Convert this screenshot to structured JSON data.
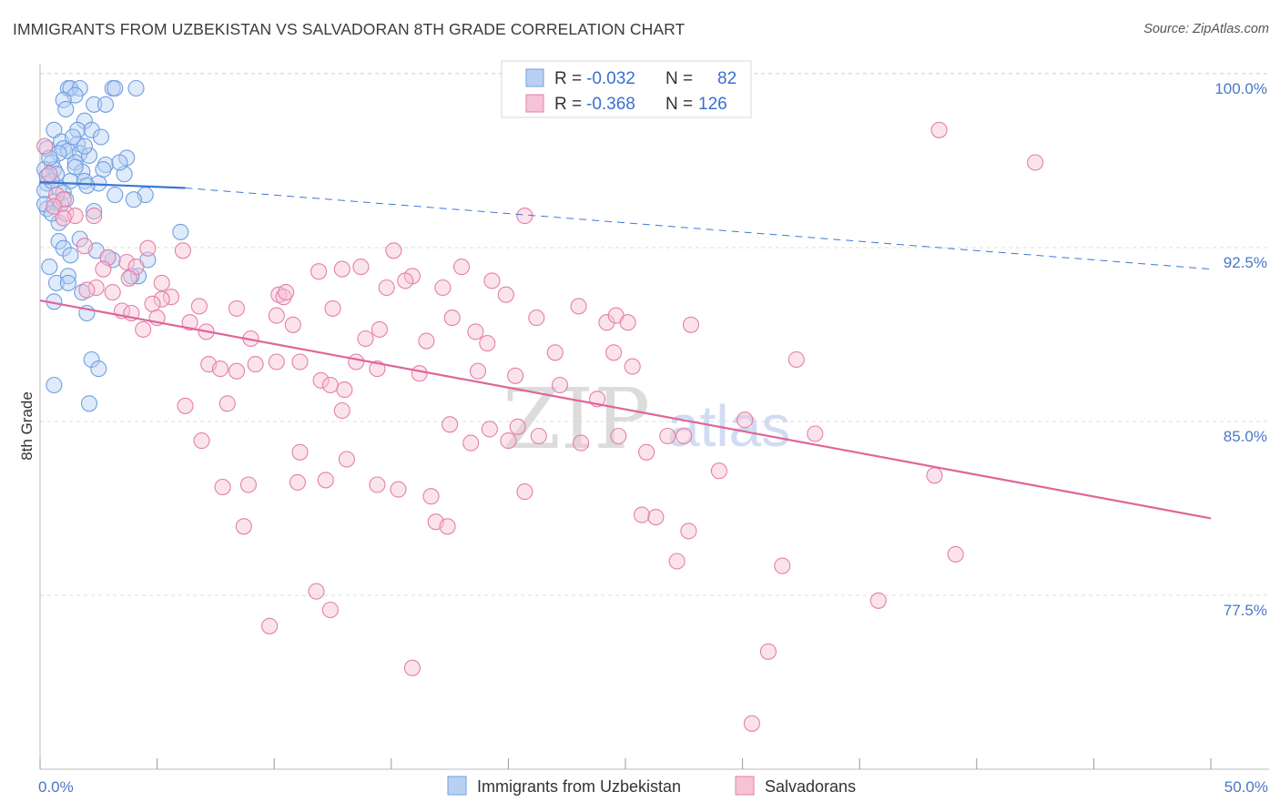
{
  "title": "IMMIGRANTS FROM UZBEKISTAN VS SALVADORAN 8TH GRADE CORRELATION CHART",
  "source": "Source: ZipAtlas.com",
  "watermark": {
    "left": "ZIP",
    "right": "atlas"
  },
  "chart_data": {
    "type": "scatter",
    "xlabel": "",
    "ylabel": "8th Grade",
    "xlim": [
      0,
      50
    ],
    "ylim": [
      70,
      101.5
    ],
    "x_ticks": [
      "0.0%",
      "50.0%"
    ],
    "y_ticks": [
      {
        "value": 100.0,
        "label": "100.0%"
      },
      {
        "value": 92.5,
        "label": "92.5%"
      },
      {
        "value": 85.0,
        "label": "85.0%"
      },
      {
        "value": 77.5,
        "label": "77.5%"
      }
    ],
    "legend": {
      "rows": [
        {
          "r_label": "R =",
          "r_value": "-0.032",
          "n_label": "N =",
          "n_value": "82"
        },
        {
          "r_label": "R =",
          "r_value": "-0.368",
          "n_label": "N =",
          "n_value": "126"
        }
      ]
    },
    "series": [
      {
        "name": "Immigrants from Uzbekistan",
        "color": "#6f9fe0",
        "fill": "#b9d0f3",
        "trend": {
          "x0": 0,
          "y0": 95.95,
          "x1": 6.2,
          "y1": 95.7,
          "dash_to_x": 50,
          "dash_to_y": 92.2
        },
        "points": [
          [
            1.2,
            100.0
          ],
          [
            1.3,
            100.0
          ],
          [
            1.7,
            100.0
          ],
          [
            3.1,
            100.0
          ],
          [
            3.2,
            100.0
          ],
          [
            4.1,
            100.0
          ],
          [
            1.5,
            99.7
          ],
          [
            1.0,
            99.5
          ],
          [
            2.3,
            99.3
          ],
          [
            2.8,
            99.3
          ],
          [
            1.1,
            99.1
          ],
          [
            1.9,
            98.6
          ],
          [
            0.6,
            98.2
          ],
          [
            1.6,
            98.2
          ],
          [
            2.2,
            98.2
          ],
          [
            2.6,
            97.9
          ],
          [
            0.9,
            97.7
          ],
          [
            1.6,
            97.6
          ],
          [
            0.3,
            97.4
          ],
          [
            1.0,
            97.4
          ],
          [
            1.2,
            97.3
          ],
          [
            0.8,
            97.2
          ],
          [
            1.7,
            97.2
          ],
          [
            2.1,
            97.1
          ],
          [
            3.7,
            97.0
          ],
          [
            0.5,
            96.8
          ],
          [
            1.5,
            96.8
          ],
          [
            2.8,
            96.7
          ],
          [
            0.2,
            96.5
          ],
          [
            0.6,
            96.5
          ],
          [
            1.8,
            96.4
          ],
          [
            3.6,
            96.3
          ],
          [
            0.7,
            96.3
          ],
          [
            1.3,
            96.0
          ],
          [
            1.9,
            96.0
          ],
          [
            0.3,
            95.9
          ],
          [
            0.8,
            95.7
          ],
          [
            0.2,
            95.6
          ],
          [
            1.0,
            95.5
          ],
          [
            3.2,
            95.4
          ],
          [
            4.5,
            95.4
          ],
          [
            4.0,
            95.2
          ],
          [
            0.6,
            95.1
          ],
          [
            0.9,
            95.0
          ],
          [
            0.3,
            94.8
          ],
          [
            2.3,
            94.7
          ],
          [
            6.0,
            93.8
          ],
          [
            0.8,
            93.4
          ],
          [
            1.0,
            93.1
          ],
          [
            2.4,
            93.0
          ],
          [
            1.3,
            92.8
          ],
          [
            3.1,
            92.6
          ],
          [
            4.6,
            92.6
          ],
          [
            0.4,
            92.3
          ],
          [
            1.2,
            91.9
          ],
          [
            4.2,
            91.9
          ],
          [
            0.7,
            91.6
          ],
          [
            1.2,
            91.6
          ],
          [
            1.8,
            91.2
          ],
          [
            0.6,
            90.8
          ],
          [
            2.0,
            90.3
          ],
          [
            2.2,
            88.3
          ],
          [
            2.5,
            87.9
          ],
          [
            0.6,
            87.2
          ],
          [
            2.1,
            86.4
          ],
          [
            0.2,
            95.0
          ],
          [
            0.5,
            96.0
          ],
          [
            1.4,
            97.9
          ],
          [
            2.7,
            96.5
          ],
          [
            1.1,
            95.2
          ],
          [
            3.4,
            96.8
          ],
          [
            0.4,
            97.0
          ],
          [
            1.9,
            97.5
          ],
          [
            2.5,
            95.9
          ],
          [
            0.8,
            94.2
          ],
          [
            1.7,
            93.5
          ],
          [
            3.9,
            91.9
          ],
          [
            2.9,
            92.7
          ],
          [
            0.5,
            94.6
          ],
          [
            1.5,
            96.6
          ],
          [
            2.0,
            95.8
          ],
          [
            0.3,
            96.2
          ]
        ]
      },
      {
        "name": "Salvadorans",
        "color": "#e57fa6",
        "fill": "#f6c2d5",
        "trend": {
          "x0": 0,
          "y0": 90.85,
          "x1": 50,
          "y1": 81.45
        },
        "points": [
          [
            0.2,
            97.5
          ],
          [
            0.4,
            96.3
          ],
          [
            0.7,
            95.4
          ],
          [
            1.0,
            95.2
          ],
          [
            0.6,
            94.9
          ],
          [
            1.1,
            94.6
          ],
          [
            1.5,
            94.5
          ],
          [
            2.3,
            94.5
          ],
          [
            1.0,
            94.4
          ],
          [
            1.9,
            93.2
          ],
          [
            4.6,
            93.1
          ],
          [
            6.1,
            93.0
          ],
          [
            2.9,
            92.7
          ],
          [
            3.7,
            92.5
          ],
          [
            4.1,
            92.3
          ],
          [
            2.7,
            92.2
          ],
          [
            3.8,
            91.8
          ],
          [
            5.2,
            91.6
          ],
          [
            2.4,
            91.4
          ],
          [
            2.0,
            91.3
          ],
          [
            3.1,
            91.2
          ],
          [
            5.6,
            91.0
          ],
          [
            5.2,
            90.9
          ],
          [
            4.8,
            90.7
          ],
          [
            6.8,
            90.6
          ],
          [
            3.5,
            90.4
          ],
          [
            3.9,
            90.3
          ],
          [
            8.4,
            90.5
          ],
          [
            5.0,
            90.1
          ],
          [
            6.4,
            89.9
          ],
          [
            4.4,
            89.6
          ],
          [
            7.1,
            89.5
          ],
          [
            9.0,
            89.2
          ],
          [
            10.2,
            91.1
          ],
          [
            10.4,
            91.0
          ],
          [
            10.5,
            91.2
          ],
          [
            11.9,
            92.1
          ],
          [
            12.9,
            92.2
          ],
          [
            13.7,
            92.3
          ],
          [
            15.1,
            93.0
          ],
          [
            15.9,
            91.9
          ],
          [
            15.6,
            91.7
          ],
          [
            17.2,
            91.4
          ],
          [
            18.0,
            92.3
          ],
          [
            19.3,
            91.7
          ],
          [
            19.9,
            91.1
          ],
          [
            20.7,
            94.5
          ],
          [
            14.8,
            91.4
          ],
          [
            10.1,
            90.2
          ],
          [
            10.8,
            89.8
          ],
          [
            12.5,
            90.5
          ],
          [
            13.9,
            89.2
          ],
          [
            14.5,
            89.6
          ],
          [
            16.5,
            89.1
          ],
          [
            17.6,
            90.1
          ],
          [
            18.6,
            89.5
          ],
          [
            19.1,
            89.0
          ],
          [
            21.2,
            90.1
          ],
          [
            22.0,
            88.6
          ],
          [
            23.0,
            90.6
          ],
          [
            24.2,
            89.9
          ],
          [
            24.6,
            90.2
          ],
          [
            25.1,
            89.9
          ],
          [
            24.5,
            88.6
          ],
          [
            25.3,
            88.0
          ],
          [
            7.2,
            88.1
          ],
          [
            7.7,
            87.9
          ],
          [
            8.4,
            87.8
          ],
          [
            9.2,
            88.1
          ],
          [
            10.1,
            88.2
          ],
          [
            11.1,
            88.2
          ],
          [
            12.0,
            87.4
          ],
          [
            12.4,
            87.2
          ],
          [
            13.0,
            87.0
          ],
          [
            13.5,
            88.2
          ],
          [
            14.4,
            87.9
          ],
          [
            16.2,
            87.7
          ],
          [
            18.7,
            87.8
          ],
          [
            20.3,
            87.6
          ],
          [
            22.2,
            87.2
          ],
          [
            23.8,
            86.6
          ],
          [
            6.2,
            86.3
          ],
          [
            8.0,
            86.4
          ],
          [
            12.9,
            86.1
          ],
          [
            17.5,
            85.5
          ],
          [
            19.2,
            85.3
          ],
          [
            20.4,
            85.4
          ],
          [
            21.3,
            85.0
          ],
          [
            24.7,
            85.0
          ],
          [
            26.8,
            85.0
          ],
          [
            27.5,
            85.0
          ],
          [
            30.1,
            85.7
          ],
          [
            33.1,
            85.1
          ],
          [
            6.9,
            84.8
          ],
          [
            11.1,
            84.3
          ],
          [
            13.1,
            84.0
          ],
          [
            18.4,
            84.7
          ],
          [
            20.0,
            84.8
          ],
          [
            23.1,
            84.7
          ],
          [
            25.9,
            84.3
          ],
          [
            29.0,
            83.5
          ],
          [
            7.8,
            82.8
          ],
          [
            8.9,
            82.9
          ],
          [
            11.0,
            83.0
          ],
          [
            12.2,
            83.1
          ],
          [
            14.4,
            82.9
          ],
          [
            15.3,
            82.7
          ],
          [
            16.7,
            82.4
          ],
          [
            20.7,
            82.6
          ],
          [
            16.9,
            81.3
          ],
          [
            17.4,
            81.1
          ],
          [
            25.7,
            81.6
          ],
          [
            26.3,
            81.5
          ],
          [
            27.7,
            80.9
          ],
          [
            8.7,
            81.1
          ],
          [
            27.2,
            79.6
          ],
          [
            31.7,
            79.4
          ],
          [
            39.1,
            79.9
          ],
          [
            11.8,
            78.3
          ],
          [
            12.4,
            77.5
          ],
          [
            35.8,
            77.9
          ],
          [
            9.8,
            76.8
          ],
          [
            15.9,
            75.0
          ],
          [
            31.1,
            75.7
          ],
          [
            30.4,
            72.6
          ],
          [
            38.2,
            83.3
          ],
          [
            32.3,
            88.3
          ],
          [
            38.4,
            98.2
          ],
          [
            42.5,
            96.8
          ],
          [
            27.8,
            89.8
          ]
        ]
      }
    ]
  },
  "bottom_legend": [
    "Immigrants from Uzbekistan",
    "Salvadorans"
  ]
}
